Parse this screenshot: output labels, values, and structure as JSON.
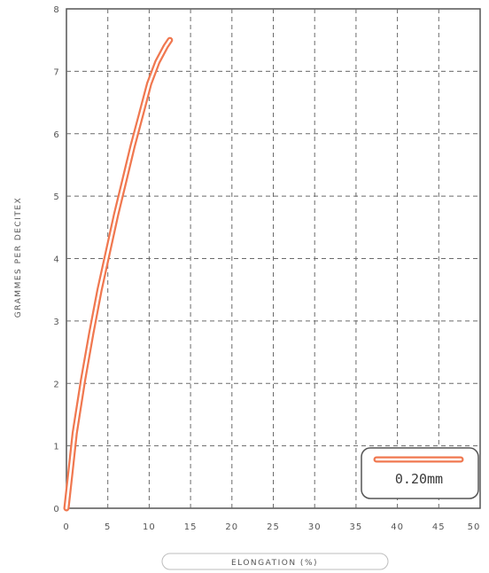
{
  "chart_data": {
    "type": "line",
    "xlabel": "ELONGATION (%)",
    "ylabel": "GRAMMES PER DECITEX",
    "xlim": [
      0,
      50
    ],
    "ylim": [
      0,
      8
    ],
    "x_ticks": [
      "0",
      "5",
      "10",
      "15",
      "20",
      "25",
      "30",
      "35",
      "40",
      "45",
      "50"
    ],
    "y_ticks": [
      "0",
      "1",
      "2",
      "3",
      "4",
      "5",
      "6",
      "7",
      "8"
    ],
    "grid": true,
    "legend_position": "bottom-right",
    "series": [
      {
        "name": "0.20mm",
        "color": "#f07850",
        "x": [
          0,
          0.5,
          1,
          2,
          3,
          4,
          5,
          6,
          7,
          8,
          9,
          10,
          11,
          12,
          12.5
        ],
        "y": [
          0,
          0.6,
          1.2,
          2.05,
          2.8,
          3.5,
          4.1,
          4.7,
          5.25,
          5.8,
          6.3,
          6.8,
          7.15,
          7.4,
          7.5
        ]
      }
    ]
  }
}
